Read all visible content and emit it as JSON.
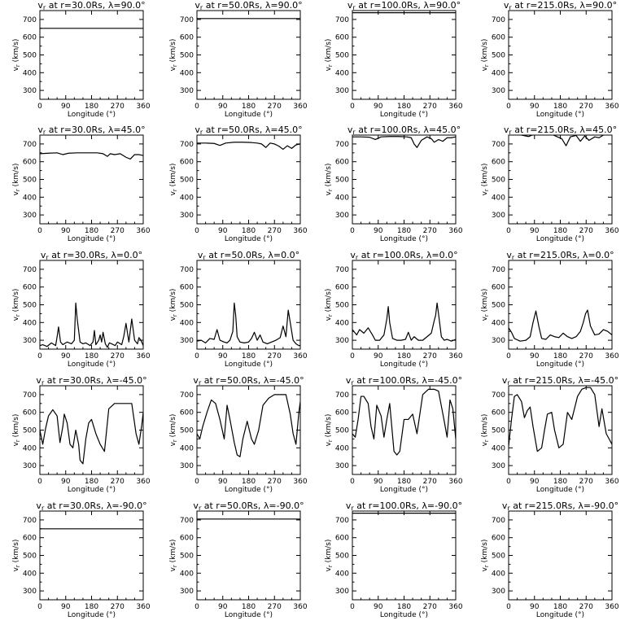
{
  "chart_data": [
    {
      "type": "line",
      "title": "v_r at r=30.0Rs, λ=90.0°",
      "xlabel": "Longitude (°)",
      "ylabel": "v_r (km/s)",
      "xlim": [
        0,
        360
      ],
      "ylim": [
        250,
        750
      ],
      "xticks": [
        0,
        90,
        180,
        270,
        360
      ],
      "yticks": [
        300,
        400,
        500,
        600,
        700
      ],
      "x": [
        0,
        360
      ],
      "values": [
        650,
        650
      ]
    },
    {
      "type": "line",
      "title": "v_r at r=50.0Rs, λ=90.0°",
      "xlabel": "Longitude (°)",
      "ylabel": "v_r (km/s)",
      "xlim": [
        0,
        360
      ],
      "ylim": [
        250,
        750
      ],
      "xticks": [
        0,
        90,
        180,
        270,
        360
      ],
      "yticks": [
        300,
        400,
        500,
        600,
        700
      ],
      "x": [
        0,
        360
      ],
      "values": [
        705,
        705
      ]
    },
    {
      "type": "line",
      "title": "v_r at r=100.0Rs, λ=90.0°",
      "xlabel": "Longitude (°)",
      "ylabel": "v_r (km/s)",
      "xlim": [
        0,
        360
      ],
      "ylim": [
        250,
        750
      ],
      "xticks": [
        0,
        90,
        180,
        270,
        360
      ],
      "yticks": [
        300,
        400,
        500,
        600,
        700
      ],
      "x": [
        0,
        360
      ],
      "values": [
        738,
        738
      ]
    },
    {
      "type": "line",
      "title": "v_r at r=215.0Rs, λ=90.0°",
      "xlabel": "Longitude (°)",
      "ylabel": "v_r (km/s)",
      "xlim": [
        0,
        360
      ],
      "ylim": [
        250,
        750
      ],
      "xticks": [
        0,
        90,
        180,
        270,
        360
      ],
      "yticks": [
        300,
        400,
        500,
        600,
        700
      ],
      "x": [
        0,
        360
      ],
      "values": [
        755,
        755
      ]
    },
    {
      "type": "line",
      "title": "v_r at r=30.0Rs, λ=45.0°",
      "xlabel": "Longitude (°)",
      "ylabel": "v_r (km/s)",
      "xlim": [
        0,
        360
      ],
      "ylim": [
        250,
        750
      ],
      "xticks": [
        0,
        90,
        180,
        270,
        360
      ],
      "yticks": [
        300,
        400,
        500,
        600,
        700
      ],
      "x": [
        0,
        30,
        60,
        80,
        100,
        130,
        160,
        200,
        220,
        235,
        245,
        260,
        280,
        300,
        315,
        330,
        345,
        360
      ],
      "values": [
        645,
        648,
        650,
        640,
        648,
        650,
        650,
        650,
        645,
        630,
        645,
        640,
        645,
        625,
        615,
        640,
        640,
        635
      ]
    },
    {
      "type": "line",
      "title": "v_r at r=50.0Rs, λ=45.0°",
      "xlabel": "Longitude (°)",
      "ylabel": "v_r (km/s)",
      "xlim": [
        0,
        360
      ],
      "ylim": [
        250,
        750
      ],
      "xticks": [
        0,
        90,
        180,
        270,
        360
      ],
      "yticks": [
        300,
        400,
        500,
        600,
        700
      ],
      "x": [
        0,
        30,
        60,
        80,
        100,
        130,
        160,
        190,
        210,
        225,
        240,
        255,
        270,
        285,
        300,
        315,
        330,
        345,
        360
      ],
      "values": [
        705,
        705,
        703,
        692,
        705,
        710,
        710,
        708,
        705,
        700,
        680,
        705,
        700,
        688,
        670,
        690,
        675,
        695,
        700
      ]
    },
    {
      "type": "line",
      "title": "v_r at r=100.0Rs, λ=45.0°",
      "xlabel": "Longitude (°)",
      "ylabel": "v_r (km/s)",
      "xlim": [
        0,
        360
      ],
      "ylim": [
        250,
        750
      ],
      "xticks": [
        0,
        90,
        180,
        270,
        360
      ],
      "yticks": [
        300,
        400,
        500,
        600,
        700
      ],
      "x": [
        0,
        30,
        60,
        80,
        100,
        130,
        160,
        190,
        205,
        215,
        225,
        240,
        260,
        275,
        285,
        300,
        315,
        330,
        345,
        360
      ],
      "values": [
        740,
        740,
        738,
        725,
        740,
        742,
        742,
        740,
        735,
        700,
        680,
        720,
        740,
        730,
        710,
        725,
        715,
        735,
        735,
        740
      ]
    },
    {
      "type": "line",
      "title": "v_r at r=215.0Rs, λ=45.0°",
      "xlabel": "Longitude (°)",
      "ylabel": "v_r (km/s)",
      "xlim": [
        0,
        360
      ],
      "ylim": [
        250,
        750
      ],
      "xticks": [
        0,
        90,
        180,
        270,
        360
      ],
      "yticks": [
        300,
        400,
        500,
        600,
        700
      ],
      "x": [
        0,
        30,
        50,
        70,
        90,
        120,
        150,
        170,
        185,
        200,
        215,
        235,
        250,
        265,
        280,
        300,
        315,
        335,
        360
      ],
      "values": [
        755,
        755,
        748,
        742,
        755,
        755,
        755,
        740,
        730,
        690,
        740,
        748,
        715,
        745,
        720,
        740,
        735,
        755,
        755
      ]
    },
    {
      "type": "line",
      "title": "v_r at r=30.0Rs, λ=0.0°",
      "xlabel": "Longitude (°)",
      "ylabel": "v_r (km/s)",
      "xlim": [
        0,
        360
      ],
      "ylim": [
        250,
        750
      ],
      "xticks": [
        0,
        90,
        180,
        270,
        360
      ],
      "yticks": [
        300,
        400,
        500,
        600,
        700
      ],
      "x": [
        0,
        10,
        25,
        40,
        55,
        60,
        65,
        72,
        80,
        95,
        110,
        120,
        125,
        130,
        140,
        150,
        160,
        175,
        185,
        190,
        195,
        205,
        210,
        215,
        220,
        228,
        235,
        242,
        250,
        262,
        270,
        285,
        292,
        300,
        310,
        320,
        330,
        340,
        345,
        352,
        360
      ],
      "values": [
        270,
        275,
        265,
        285,
        270,
        320,
        375,
        290,
        275,
        290,
        280,
        300,
        510,
        420,
        290,
        280,
        285,
        270,
        290,
        355,
        275,
        300,
        330,
        290,
        345,
        280,
        260,
        285,
        280,
        270,
        290,
        275,
        320,
        395,
        290,
        420,
        300,
        280,
        315,
        300,
        270
      ]
    },
    {
      "type": "line",
      "title": "v_r at r=50.0Rs, λ=0.0°",
      "xlabel": "Longitude (°)",
      "ylabel": "v_r (km/s)",
      "xlim": [
        0,
        360
      ],
      "ylim": [
        250,
        750
      ],
      "xticks": [
        0,
        90,
        180,
        270,
        360
      ],
      "yticks": [
        300,
        400,
        500,
        600,
        700
      ],
      "x": [
        0,
        15,
        30,
        45,
        60,
        70,
        80,
        95,
        105,
        115,
        125,
        130,
        135,
        140,
        150,
        165,
        180,
        190,
        200,
        210,
        220,
        230,
        245,
        260,
        275,
        290,
        300,
        310,
        318,
        325,
        335,
        345,
        355,
        360
      ],
      "values": [
        295,
        300,
        285,
        310,
        305,
        360,
        300,
        290,
        285,
        300,
        350,
        510,
        440,
        320,
        290,
        285,
        290,
        310,
        345,
        300,
        330,
        290,
        280,
        290,
        300,
        315,
        380,
        320,
        470,
        400,
        300,
        280,
        270,
        270
      ]
    },
    {
      "type": "line",
      "title": "v_r at r=100.0Rs, λ=0.0°",
      "xlabel": "Longitude (°)",
      "ylabel": "v_r (km/s)",
      "xlim": [
        0,
        360
      ],
      "ylim": [
        250,
        750
      ],
      "xticks": [
        0,
        90,
        180,
        270,
        360
      ],
      "yticks": [
        300,
        400,
        500,
        600,
        700
      ],
      "x": [
        0,
        15,
        25,
        40,
        55,
        70,
        80,
        95,
        110,
        120,
        125,
        130,
        140,
        155,
        170,
        185,
        195,
        205,
        215,
        230,
        245,
        260,
        275,
        285,
        290,
        295,
        300,
        310,
        320,
        330,
        345,
        360
      ],
      "values": [
        360,
        330,
        360,
        340,
        370,
        330,
        300,
        300,
        330,
        420,
        490,
        400,
        310,
        300,
        300,
        305,
        345,
        300,
        320,
        300,
        300,
        320,
        340,
        410,
        440,
        510,
        450,
        320,
        300,
        305,
        295,
        305
      ]
    },
    {
      "type": "line",
      "title": "v_r at r=215.0Rs, λ=0.0°",
      "xlabel": "Longitude (°)",
      "ylabel": "v_r (km/s)",
      "xlim": [
        0,
        360
      ],
      "ylim": [
        250,
        750
      ],
      "xticks": [
        0,
        90,
        180,
        270,
        360
      ],
      "yticks": [
        300,
        400,
        500,
        600,
        700
      ],
      "x": [
        0,
        10,
        20,
        40,
        60,
        75,
        85,
        95,
        105,
        115,
        130,
        145,
        160,
        175,
        190,
        205,
        220,
        235,
        250,
        260,
        268,
        275,
        285,
        300,
        315,
        330,
        345,
        360
      ],
      "values": [
        370,
        345,
        310,
        295,
        300,
        320,
        400,
        465,
        380,
        310,
        305,
        330,
        320,
        315,
        340,
        320,
        310,
        320,
        350,
        400,
        450,
        470,
        380,
        330,
        335,
        360,
        350,
        330
      ]
    },
    {
      "type": "line",
      "title": "v_r at r=30.0Rs, λ=-45.0°",
      "xlabel": "Longitude (°)",
      "ylabel": "v_r (km/s)",
      "xlim": [
        0,
        360
      ],
      "ylim": [
        250,
        750
      ],
      "xticks": [
        0,
        90,
        180,
        270,
        360
      ],
      "yticks": [
        300,
        400,
        500,
        600,
        700
      ],
      "x": [
        0,
        10,
        20,
        30,
        45,
        60,
        70,
        80,
        85,
        95,
        105,
        115,
        125,
        135,
        140,
        150,
        160,
        170,
        180,
        195,
        210,
        225,
        240,
        260,
        280,
        300,
        320,
        335,
        345,
        355,
        360
      ],
      "values": [
        500,
        420,
        510,
        580,
        615,
        580,
        430,
        520,
        590,
        540,
        420,
        400,
        500,
        420,
        330,
        310,
        450,
        540,
        560,
        480,
        420,
        380,
        620,
        650,
        650,
        650,
        650,
        480,
        420,
        530,
        600
      ]
    },
    {
      "type": "line",
      "title": "v_r at r=50.0Rs, λ=-45.0°",
      "xlabel": "Longitude (°)",
      "ylabel": "v_r (km/s)",
      "xlim": [
        0,
        360
      ],
      "ylim": [
        250,
        750
      ],
      "xticks": [
        0,
        90,
        180,
        270,
        360
      ],
      "yticks": [
        300,
        400,
        500,
        600,
        700
      ],
      "x": [
        0,
        10,
        20,
        35,
        50,
        65,
        80,
        95,
        105,
        115,
        130,
        140,
        150,
        160,
        175,
        190,
        200,
        215,
        230,
        250,
        270,
        290,
        310,
        325,
        335,
        345,
        355,
        360
      ],
      "values": [
        480,
        450,
        520,
        600,
        670,
        650,
        560,
        450,
        640,
        560,
        430,
        360,
        350,
        450,
        550,
        450,
        420,
        500,
        640,
        680,
        700,
        700,
        700,
        590,
        480,
        420,
        600,
        660
      ]
    },
    {
      "type": "line",
      "title": "v_r at r=100.0Rs, λ=-45.0°",
      "xlabel": "Longitude (°)",
      "ylabel": "v_r (km/s)",
      "xlim": [
        0,
        360
      ],
      "ylim": [
        250,
        750
      ],
      "xticks": [
        0,
        90,
        180,
        270,
        360
      ],
      "yticks": [
        300,
        400,
        500,
        600,
        700
      ],
      "x": [
        0,
        10,
        20,
        30,
        40,
        55,
        65,
        75,
        85,
        100,
        110,
        120,
        130,
        145,
        155,
        165,
        180,
        195,
        210,
        225,
        245,
        265,
        285,
        300,
        320,
        330,
        340,
        350,
        360
      ],
      "values": [
        480,
        460,
        560,
        690,
        690,
        650,
        520,
        450,
        640,
        580,
        460,
        560,
        650,
        380,
        360,
        380,
        560,
        560,
        590,
        480,
        700,
        730,
        730,
        720,
        550,
        460,
        670,
        620,
        450
      ]
    },
    {
      "type": "line",
      "title": "v_r at r=215.0Rs, λ=-45.0°",
      "xlabel": "Longitude (°)",
      "ylabel": "v_r (km/s)",
      "xlim": [
        0,
        360
      ],
      "ylim": [
        250,
        750
      ],
      "xticks": [
        0,
        90,
        180,
        270,
        360
      ],
      "yticks": [
        300,
        400,
        500,
        600,
        700
      ],
      "x": [
        0,
        10,
        20,
        30,
        45,
        55,
        65,
        75,
        85,
        100,
        115,
        125,
        135,
        150,
        160,
        175,
        190,
        205,
        220,
        240,
        255,
        270,
        285,
        300,
        315,
        325,
        340,
        350,
        360
      ],
      "values": [
        410,
        560,
        690,
        700,
        660,
        570,
        610,
        630,
        520,
        380,
        400,
        500,
        590,
        600,
        500,
        400,
        420,
        600,
        560,
        690,
        730,
        740,
        740,
        700,
        520,
        620,
        480,
        450,
        420
      ]
    },
    {
      "type": "line",
      "title": "v_r at r=30.0Rs, λ=-90.0°",
      "xlabel": "Longitude (°)",
      "ylabel": "v_r (km/s)",
      "xlim": [
        0,
        360
      ],
      "ylim": [
        250,
        750
      ],
      "xticks": [
        0,
        90,
        180,
        270,
        360
      ],
      "yticks": [
        300,
        400,
        500,
        600,
        700
      ],
      "x": [
        0,
        360
      ],
      "values": [
        650,
        650
      ]
    },
    {
      "type": "line",
      "title": "v_r at r=50.0Rs, λ=-90.0°",
      "xlabel": "Longitude (°)",
      "ylabel": "v_r (km/s)",
      "xlim": [
        0,
        360
      ],
      "ylim": [
        250,
        750
      ],
      "xticks": [
        0,
        90,
        180,
        270,
        360
      ],
      "yticks": [
        300,
        400,
        500,
        600,
        700
      ],
      "x": [
        0,
        360
      ],
      "values": [
        705,
        705
      ]
    },
    {
      "type": "line",
      "title": "v_r at r=100.0Rs, λ=-90.0°",
      "xlabel": "Longitude (°)",
      "ylabel": "v_r (km/s)",
      "xlim": [
        0,
        360
      ],
      "ylim": [
        250,
        750
      ],
      "xticks": [
        0,
        90,
        180,
        270,
        360
      ],
      "yticks": [
        300,
        400,
        500,
        600,
        700
      ],
      "x": [
        0,
        360
      ],
      "values": [
        738,
        738
      ]
    },
    {
      "type": "line",
      "title": "v_r at r=215.0Rs, λ=-90.0°",
      "xlabel": "Longitude (°)",
      "ylabel": "v_r (km/s)",
      "xlim": [
        0,
        360
      ],
      "ylim": [
        250,
        750
      ],
      "xticks": [
        0,
        90,
        180,
        270,
        360
      ],
      "yticks": [
        300,
        400,
        500,
        600,
        700
      ],
      "x": [
        0,
        360
      ],
      "values": [
        755,
        755
      ]
    }
  ],
  "colors": {
    "line": "#000000",
    "axis": "#000000",
    "background": "#ffffff"
  }
}
